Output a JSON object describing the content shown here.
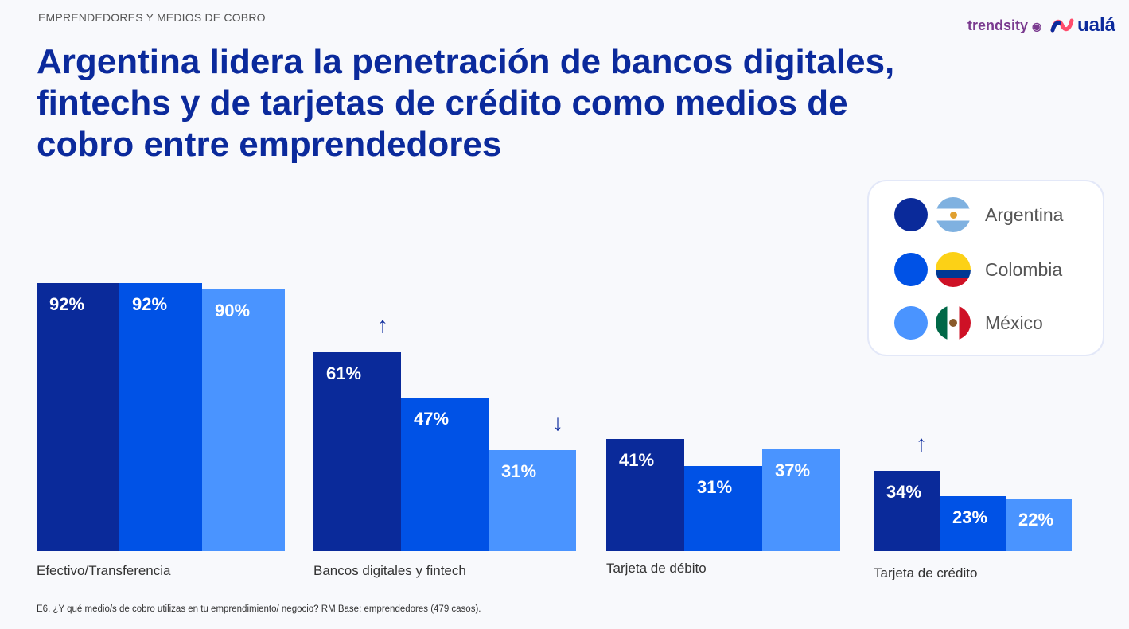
{
  "header": {
    "kicker": "EMPRENDEDORES Y MEDIOS DE COBRO",
    "title": "Argentina lidera la penetración de bancos digitales, fintechs y de tarjetas de crédito como medios de cobro entre emprendedores",
    "logos": [
      "trendsity",
      "ualá"
    ]
  },
  "footnote": "E6. ¿Y qué medio/s de cobro utilizas en tu emprendimiento/ negocio? RM Base: emprendedores (479 casos).",
  "chart_data": {
    "type": "bar",
    "categories": [
      "Efectivo/Transferencia",
      "Bancos digitales y fintech",
      "Tarjeta de débito",
      "Tarjeta de crédito"
    ],
    "series": [
      {
        "name": "Argentina",
        "color": "#0a2a9a",
        "values": [
          92,
          61,
          41,
          34
        ],
        "labels": [
          "92%",
          "61%",
          "41%",
          "34%"
        ]
      },
      {
        "name": "Colombia",
        "color": "#0052e6",
        "values": [
          92,
          47,
          31,
          23
        ],
        "labels": [
          "92%",
          "47%",
          "31%",
          "23%"
        ]
      },
      {
        "name": "México",
        "color": "#4a94ff",
        "values": [
          90,
          31,
          37,
          22
        ],
        "labels": [
          "90%",
          "31%",
          "37%",
          "22%"
        ]
      }
    ],
    "annotations": [
      {
        "category": "Bancos digitales y fintech",
        "series": "Argentina",
        "arrow": "↑"
      },
      {
        "category": "Bancos digitales y fintech",
        "series": "México",
        "arrow": "↓"
      },
      {
        "category": "Tarjeta de crédito",
        "series": "Argentina",
        "arrow": "↑"
      }
    ],
    "legend": "top-right",
    "grid": false,
    "ylabel": "",
    "xlabel": ""
  }
}
